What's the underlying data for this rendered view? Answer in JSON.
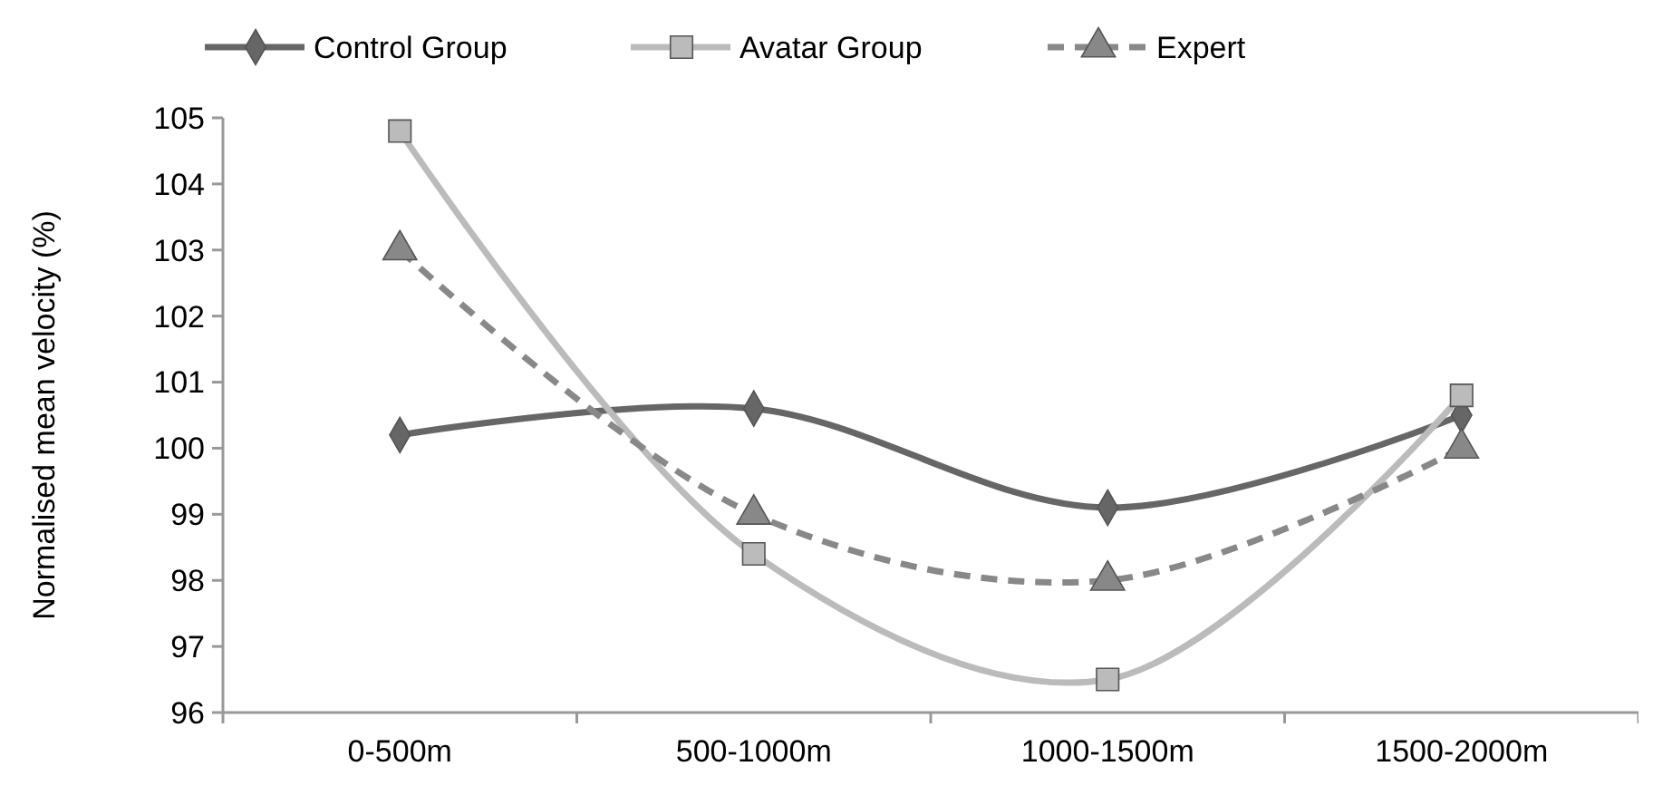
{
  "chart_data": {
    "type": "line",
    "ylabel": "Normalised mean velocity (%)",
    "categories": [
      "0-500m",
      "500-1000m",
      "1000-1500m",
      "1500-2000m"
    ],
    "series": [
      {
        "name": "Control Group",
        "color": "#666666",
        "marker": "diamond",
        "line_style": "solid",
        "values": [
          100.2,
          100.6,
          99.1,
          100.5
        ]
      },
      {
        "name": "Avatar Group",
        "color": "#bbbbbb",
        "marker": "square",
        "line_style": "solid",
        "values": [
          104.8,
          98.4,
          96.5,
          100.8
        ]
      },
      {
        "name": "Expert",
        "color": "#888888",
        "marker": "triangle",
        "line_style": "dashed",
        "values": [
          103,
          99,
          98,
          100
        ]
      }
    ],
    "ylim": [
      96,
      105
    ],
    "yticks": [
      96,
      97,
      98,
      99,
      100,
      101,
      102,
      103,
      104,
      105
    ],
    "grid": false,
    "legend": "top"
  }
}
